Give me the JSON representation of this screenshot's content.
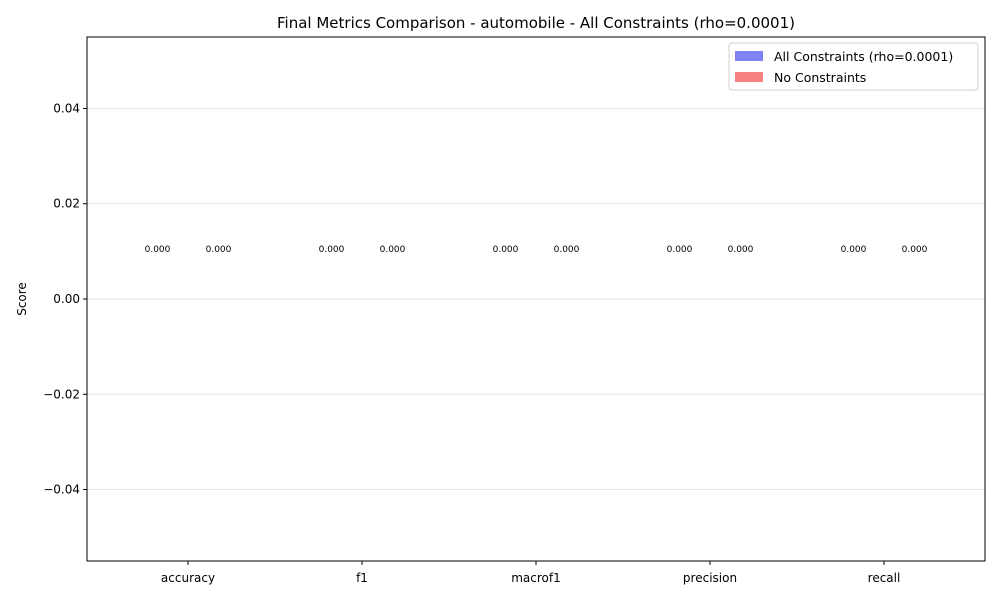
{
  "chart_data": {
    "type": "bar",
    "title": "Final Metrics Comparison - automobile - All Constraints (rho=0.0001)",
    "xlabel": "",
    "ylabel": "Score",
    "categories": [
      "accuracy",
      "f1",
      "macrof1",
      "precision",
      "recall"
    ],
    "series": [
      {
        "name": "All Constraints (rho=0.0001)",
        "color": "#4b4bf5",
        "values": [
          0,
          0,
          0,
          0,
          0
        ],
        "labels": [
          "0.000",
          "0.000",
          "0.000",
          "0.000",
          "0.000"
        ]
      },
      {
        "name": "No Constraints",
        "color": "#f54b4b",
        "values": [
          0,
          0,
          0,
          0,
          0
        ],
        "labels": [
          "0.000",
          "0.000",
          "0.000",
          "0.000",
          "0.000"
        ]
      }
    ],
    "ylim": [
      -0.055,
      0.055
    ],
    "yticks": [
      0.04,
      0.02,
      0.0,
      -0.02,
      -0.04
    ],
    "ytick_labels": [
      "0.04",
      "0.02",
      "0.00",
      "−0.02",
      "−0.04"
    ],
    "grid": "y",
    "legend": "top-right"
  }
}
